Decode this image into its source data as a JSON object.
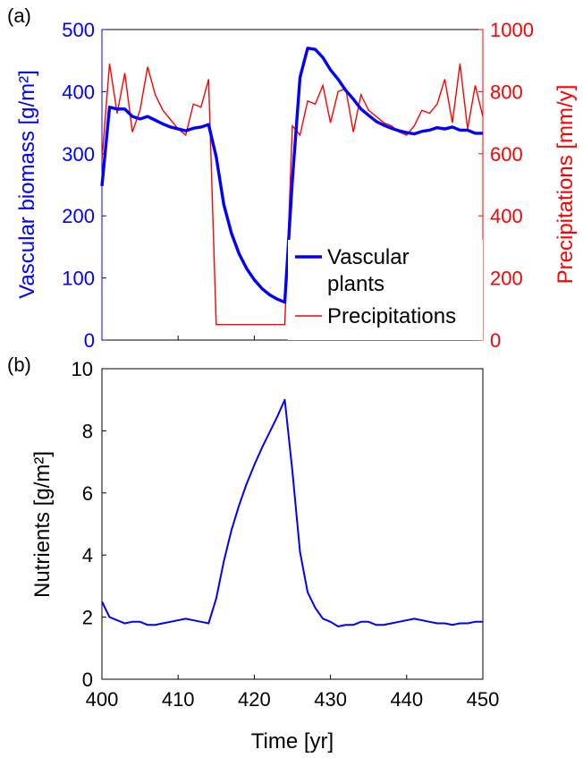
{
  "colors": {
    "blue": "#0000ff",
    "red": "#ff0000",
    "black": "#000000"
  },
  "chart_data": [
    {
      "panel_label": "(a)",
      "type": "line",
      "xlim": [
        400,
        450
      ],
      "ylim_left": [
        0,
        500
      ],
      "ylim_right": [
        0,
        1000
      ],
      "ylabel_left": "Vascular biomass [g/m²]",
      "ylabel_right": "Precipitations [mm/y]",
      "yticks_left": [
        "0",
        "100",
        "200",
        "300",
        "400",
        "500"
      ],
      "yticks_right": [
        "0",
        "200",
        "400",
        "600",
        "800",
        "1000"
      ],
      "legend": {
        "position": "bottom-right",
        "entries": [
          "Vascular plants",
          "Precipitations"
        ]
      },
      "series": [
        {
          "name": "Vascular plants",
          "axis": "left",
          "color": "#0000ff",
          "x": [
            400,
            401,
            402,
            403,
            404,
            405,
            406,
            407,
            408,
            409,
            410,
            411,
            412,
            413,
            414,
            415,
            416,
            417,
            418,
            419,
            420,
            421,
            422,
            423,
            424,
            425,
            426,
            427,
            428,
            429,
            430,
            431,
            432,
            433,
            434,
            435,
            436,
            437,
            438,
            439,
            440,
            441,
            442,
            443,
            444,
            445,
            446,
            447,
            448,
            449,
            450
          ],
          "y": [
            248,
            375,
            372,
            372,
            360,
            356,
            360,
            354,
            348,
            343,
            340,
            337,
            341,
            343,
            347,
            295,
            218,
            172,
            139,
            115,
            97,
            83,
            73,
            66,
            61,
            258,
            423,
            470,
            468,
            455,
            435,
            420,
            402,
            388,
            372,
            362,
            352,
            346,
            341,
            337,
            334,
            332,
            336,
            338,
            342,
            340,
            343,
            338,
            338,
            333,
            333
          ]
        },
        {
          "name": "Precipitations",
          "axis": "right",
          "color": "#ff0000",
          "x": [
            400,
            401,
            402,
            403,
            404,
            405,
            406,
            407,
            408,
            409,
            410,
            411,
            412,
            413,
            414,
            415,
            416,
            417,
            418,
            419,
            420,
            421,
            422,
            423,
            424,
            425,
            426,
            427,
            428,
            429,
            430,
            431,
            432,
            433,
            434,
            435,
            436,
            437,
            438,
            439,
            440,
            441,
            442,
            443,
            444,
            445,
            446,
            447,
            448,
            449,
            450
          ],
          "y": [
            580,
            890,
            730,
            860,
            670,
            740,
            880,
            790,
            740,
            710,
            680,
            660,
            760,
            750,
            840,
            50,
            50,
            50,
            50,
            50,
            50,
            50,
            50,
            50,
            50,
            690,
            660,
            770,
            760,
            820,
            700,
            800,
            810,
            670,
            790,
            740,
            720,
            700,
            690,
            670,
            660,
            690,
            740,
            730,
            760,
            840,
            700,
            890,
            680,
            820,
            720
          ]
        }
      ]
    },
    {
      "panel_label": "(b)",
      "type": "line",
      "xlim": [
        400,
        450
      ],
      "ylim": [
        0,
        10
      ],
      "xlabel": "Time [yr]",
      "ylabel": "Nutrients [g/m²]",
      "xticks": [
        "400",
        "410",
        "420",
        "430",
        "440",
        "450"
      ],
      "yticks": [
        "0",
        "2",
        "4",
        "6",
        "8",
        "10"
      ],
      "series": [
        {
          "color": "#0000ff",
          "x": [
            400,
            401,
            402,
            403,
            404,
            405,
            406,
            407,
            408,
            409,
            410,
            411,
            412,
            413,
            414,
            415,
            416,
            417,
            418,
            419,
            420,
            421,
            422,
            423,
            424,
            425,
            426,
            427,
            428,
            429,
            430,
            431,
            432,
            433,
            434,
            435,
            436,
            437,
            438,
            439,
            440,
            441,
            442,
            443,
            444,
            445,
            446,
            447,
            448,
            449,
            450
          ],
          "y": [
            2.5,
            2.0,
            1.9,
            1.8,
            1.85,
            1.85,
            1.75,
            1.75,
            1.8,
            1.85,
            1.9,
            1.95,
            1.9,
            1.85,
            1.8,
            2.6,
            3.8,
            4.8,
            5.6,
            6.3,
            6.9,
            7.45,
            7.95,
            8.45,
            9.0,
            6.7,
            4.1,
            2.8,
            2.3,
            1.95,
            1.85,
            1.7,
            1.75,
            1.75,
            1.85,
            1.85,
            1.75,
            1.75,
            1.8,
            1.85,
            1.9,
            1.95,
            1.9,
            1.85,
            1.8,
            1.8,
            1.75,
            1.8,
            1.8,
            1.85,
            1.85
          ]
        }
      ]
    }
  ]
}
